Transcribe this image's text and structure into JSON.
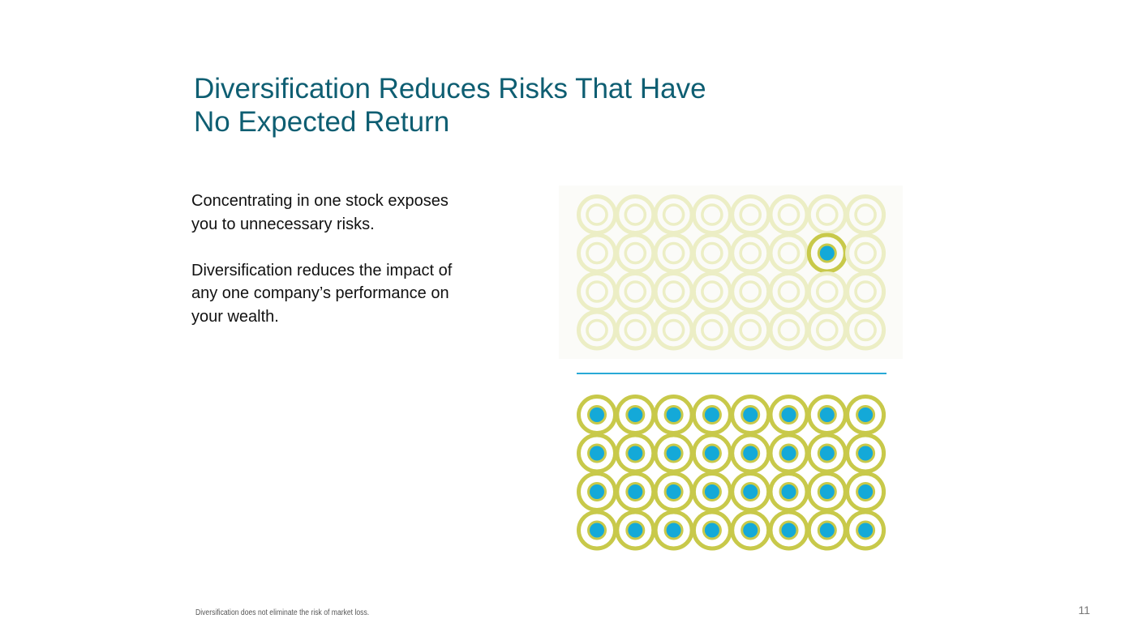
{
  "title": {
    "line1": "Diversification Reduces Risks That Have",
    "line2": "No Expected Return"
  },
  "body": {
    "paragraph1": {
      "line1": "Concentrating in one stock exposes",
      "line2": "you to unnecessary risks."
    },
    "paragraph2": {
      "line1": "Diversification reduces the impact of",
      "line2": "any one company’s performance on",
      "line3": "your wealth."
    }
  },
  "footnote": "Diversification does not eliminate the risk of market loss.",
  "page_number": "11",
  "graphic": {
    "rows": 4,
    "columns": 8,
    "concentrated_highlight": {
      "row": 2,
      "column": 7
    },
    "colors": {
      "ring_active": "#c8c94a",
      "ring_faded": "#eceec5",
      "core_active": "#14a9d8",
      "divider": "#29a9d6"
    }
  }
}
